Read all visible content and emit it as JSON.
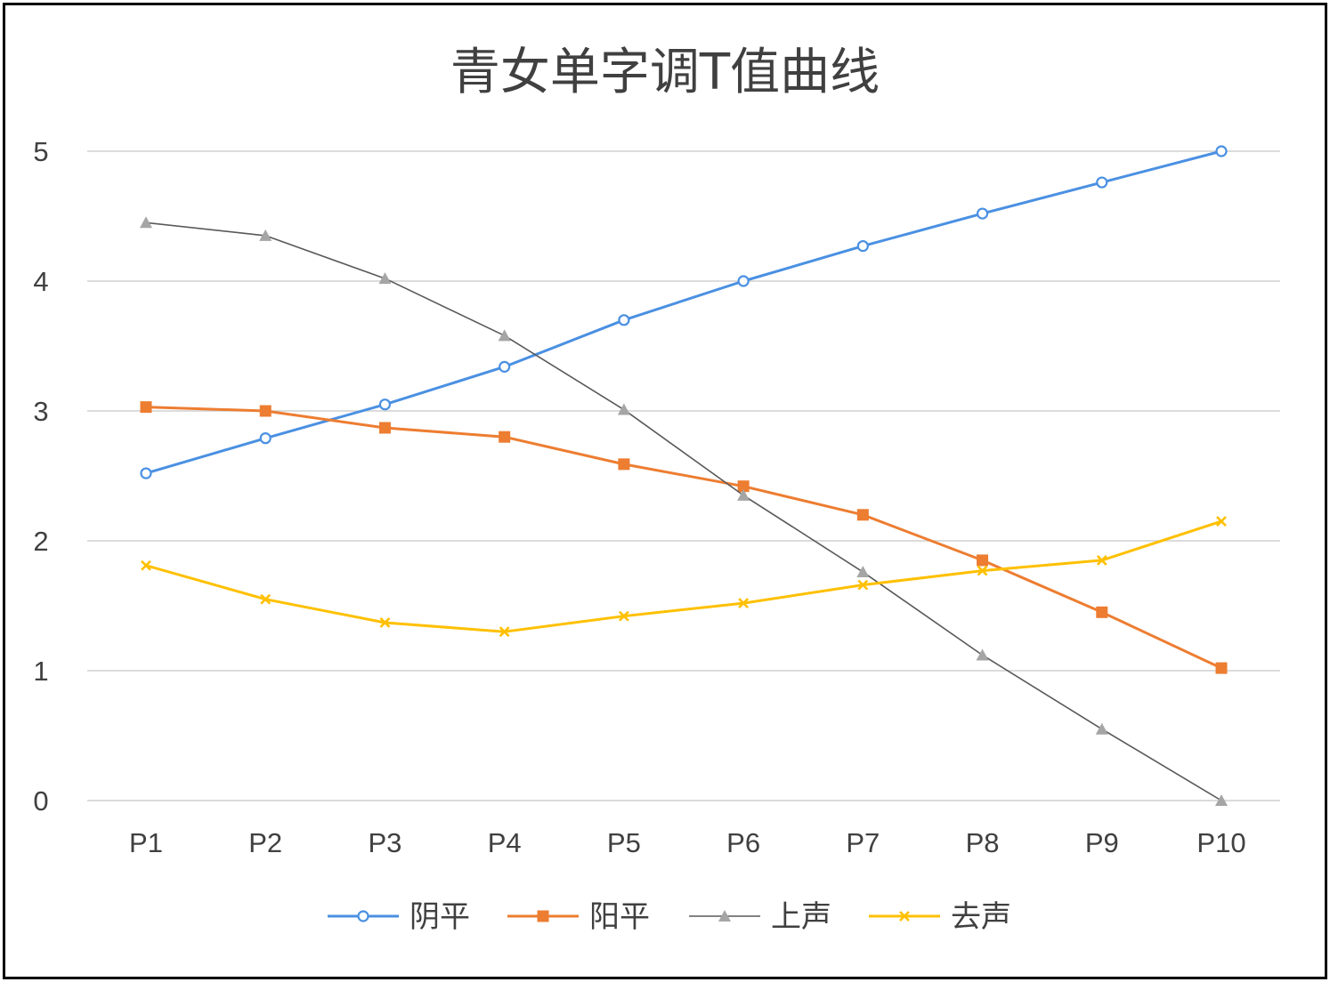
{
  "chart_data": {
    "type": "line",
    "title": "青女单字调T值曲线",
    "xlabel": "",
    "ylabel": "",
    "categories": [
      "P1",
      "P2",
      "P3",
      "P4",
      "P5",
      "P6",
      "P7",
      "P8",
      "P9",
      "P10"
    ],
    "ylim": [
      0,
      5
    ],
    "yticks": [
      "0",
      "1",
      "2",
      "3",
      "4",
      "5"
    ],
    "grid": true,
    "legend_position": "bottom",
    "series": [
      {
        "name": "阴平",
        "color": "#4a90e2",
        "marker": "circle",
        "values": [
          2.52,
          2.79,
          3.05,
          3.34,
          3.7,
          4.0,
          4.27,
          4.52,
          4.76,
          5.0
        ]
      },
      {
        "name": "阳平",
        "color": "#ed7d31",
        "marker": "square",
        "values": [
          3.03,
          3.0,
          2.87,
          2.8,
          2.59,
          2.42,
          2.2,
          1.85,
          1.45,
          1.02
        ]
      },
      {
        "name": "上声",
        "color": "#a5a5a5",
        "line_color": "#595959",
        "marker": "triangle",
        "values": [
          4.45,
          4.35,
          4.02,
          3.58,
          3.01,
          2.35,
          1.76,
          1.12,
          0.55,
          0.0
        ]
      },
      {
        "name": "去声",
        "color": "#ffc000",
        "marker": "x",
        "values": [
          1.81,
          1.55,
          1.37,
          1.3,
          1.42,
          1.52,
          1.66,
          1.77,
          1.85,
          2.15
        ]
      }
    ]
  }
}
